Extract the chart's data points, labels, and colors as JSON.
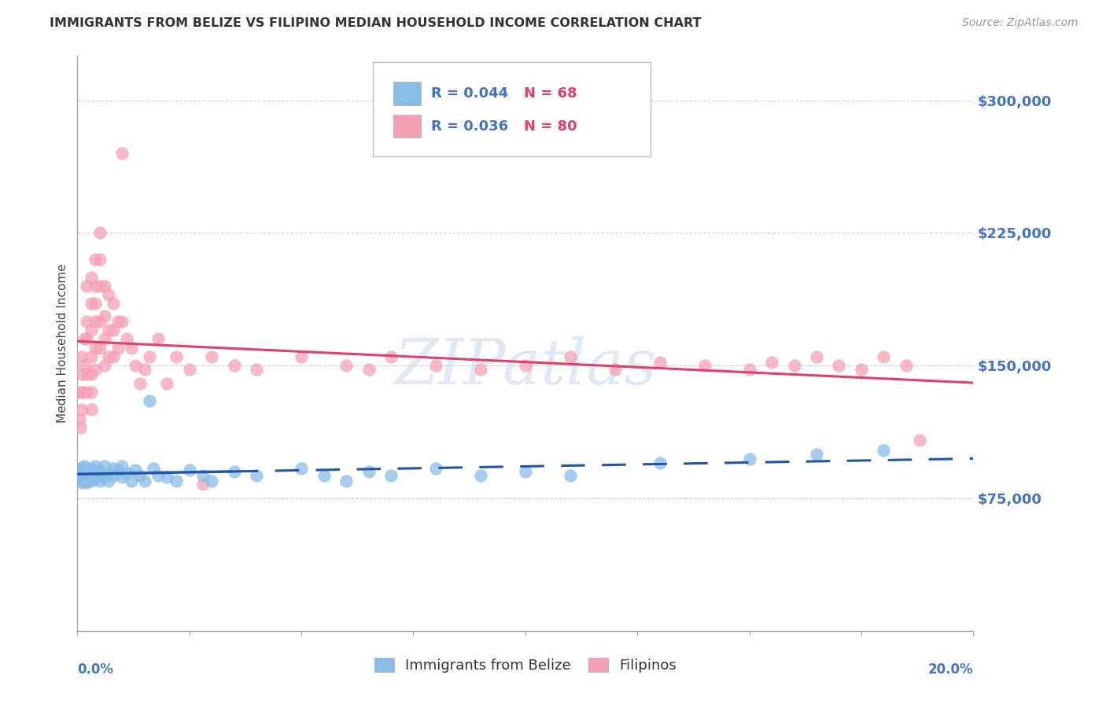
{
  "title": "IMMIGRANTS FROM BELIZE VS FILIPINO MEDIAN HOUSEHOLD INCOME CORRELATION CHART",
  "source": "Source: ZipAtlas.com",
  "ylabel": "Median Household Income",
  "yticks": [
    75000,
    150000,
    225000,
    300000
  ],
  "ytick_labels": [
    "$75,000",
    "$150,000",
    "$225,000",
    "$300,000"
  ],
  "xlim": [
    0.0,
    0.2
  ],
  "ylim": [
    0,
    325000
  ],
  "belize_R": "0.044",
  "belize_N": "68",
  "filipino_R": "0.036",
  "filipino_N": "80",
  "belize_color": "#89bde8",
  "filipino_color": "#f5a0b5",
  "belize_line_color": "#2255aa",
  "filipino_line_color": "#e0406a",
  "watermark": "ZIPatlas",
  "background_color": "#ffffff",
  "grid_color": "#d0d0d0",
  "axis_label_color": "#4472c4",
  "title_color": "#333333",
  "legend_text_color": "#4472c4",
  "belize_x": [
    0.0005,
    0.0006,
    0.0007,
    0.0008,
    0.0009,
    0.001,
    0.001,
    0.001,
    0.001,
    0.001,
    0.0015,
    0.0015,
    0.0015,
    0.002,
    0.002,
    0.002,
    0.002,
    0.002,
    0.002,
    0.0025,
    0.003,
    0.003,
    0.003,
    0.003,
    0.003,
    0.004,
    0.004,
    0.004,
    0.005,
    0.005,
    0.005,
    0.006,
    0.006,
    0.007,
    0.007,
    0.008,
    0.008,
    0.009,
    0.01,
    0.01,
    0.011,
    0.012,
    0.013,
    0.014,
    0.015,
    0.016,
    0.017,
    0.018,
    0.02,
    0.022,
    0.025,
    0.028,
    0.03,
    0.035,
    0.04,
    0.05,
    0.055,
    0.06,
    0.065,
    0.07,
    0.08,
    0.09,
    0.1,
    0.11,
    0.13,
    0.15,
    0.165,
    0.18
  ],
  "belize_y": [
    87000,
    92000,
    88000,
    85000,
    91000,
    88000,
    84000,
    92000,
    86000,
    90000,
    89000,
    93000,
    87000,
    85000,
    90000,
    88000,
    92000,
    86000,
    84000,
    91000,
    88000,
    85000,
    92000,
    89000,
    87000,
    90000,
    86000,
    93000,
    88000,
    85000,
    91000,
    87000,
    93000,
    89000,
    85000,
    92000,
    88000,
    91000,
    87000,
    93000,
    89000,
    85000,
    91000,
    88000,
    85000,
    130000,
    92000,
    88000,
    87000,
    85000,
    91000,
    88000,
    85000,
    90000,
    88000,
    92000,
    88000,
    85000,
    90000,
    88000,
    92000,
    88000,
    90000,
    88000,
    95000,
    97000,
    100000,
    102000
  ],
  "filipino_x": [
    0.0005,
    0.0006,
    0.0007,
    0.001,
    0.001,
    0.001,
    0.001,
    0.0015,
    0.0015,
    0.002,
    0.002,
    0.002,
    0.002,
    0.002,
    0.003,
    0.003,
    0.003,
    0.003,
    0.003,
    0.003,
    0.003,
    0.004,
    0.004,
    0.004,
    0.004,
    0.004,
    0.004,
    0.005,
    0.005,
    0.005,
    0.005,
    0.005,
    0.006,
    0.006,
    0.006,
    0.006,
    0.007,
    0.007,
    0.007,
    0.008,
    0.008,
    0.008,
    0.009,
    0.009,
    0.01,
    0.01,
    0.011,
    0.012,
    0.013,
    0.014,
    0.015,
    0.016,
    0.018,
    0.02,
    0.022,
    0.025,
    0.028,
    0.03,
    0.035,
    0.04,
    0.05,
    0.06,
    0.065,
    0.07,
    0.08,
    0.09,
    0.1,
    0.11,
    0.12,
    0.13,
    0.14,
    0.15,
    0.155,
    0.16,
    0.165,
    0.17,
    0.175,
    0.18,
    0.185,
    0.188
  ],
  "filipino_y": [
    120000,
    135000,
    115000,
    155000,
    145000,
    135000,
    125000,
    165000,
    150000,
    175000,
    195000,
    165000,
    145000,
    135000,
    200000,
    185000,
    170000,
    155000,
    145000,
    135000,
    125000,
    210000,
    195000,
    185000,
    175000,
    160000,
    148000,
    225000,
    210000,
    195000,
    175000,
    160000,
    195000,
    178000,
    165000,
    150000,
    190000,
    170000,
    155000,
    185000,
    170000,
    155000,
    175000,
    160000,
    270000,
    175000,
    165000,
    160000,
    150000,
    140000,
    148000,
    155000,
    165000,
    140000,
    155000,
    148000,
    83000,
    155000,
    150000,
    148000,
    155000,
    150000,
    148000,
    155000,
    150000,
    148000,
    150000,
    155000,
    148000,
    152000,
    150000,
    148000,
    152000,
    150000,
    155000,
    150000,
    148000,
    155000,
    150000,
    108000
  ]
}
